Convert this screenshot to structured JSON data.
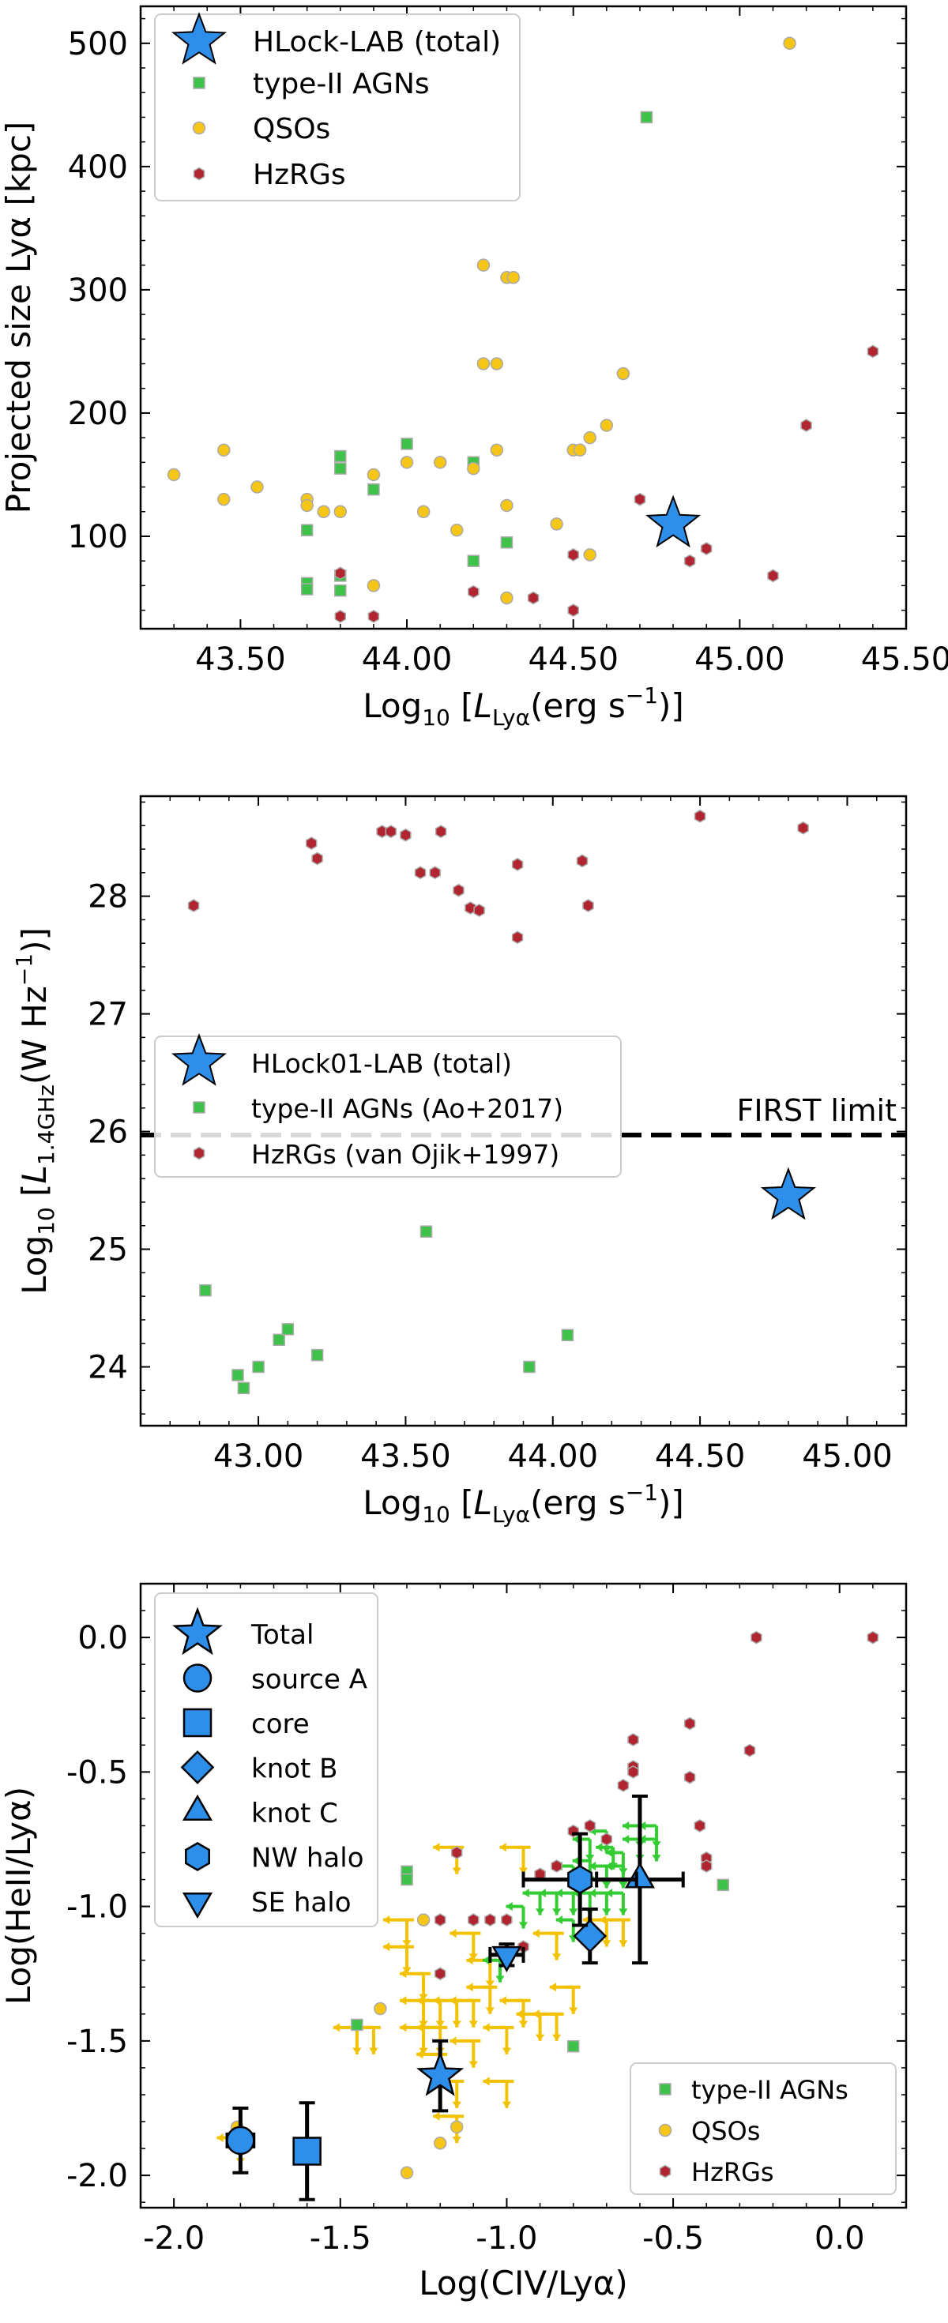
{
  "colors": {
    "star": "#2e8fea",
    "agn": "#3fc24a",
    "qso": "#f5c518",
    "hzrg": "#b02530",
    "limit_upper": "#f2c200",
    "limit_green": "#33cc33",
    "errorbar": "#000000",
    "marker_edge_grey": "#aaaaaa"
  },
  "chart_data": [
    {
      "id": "panel1",
      "type": "scatter",
      "xlabel_main": "Log",
      "xlabel_sub": "10",
      "xlabel_open": "[",
      "xlabel_var": "L",
      "xlabel_var_sub": "Lyα",
      "xlabel_unit": "(erg s",
      "xlabel_exp": "−1",
      "xlabel_close": ")]",
      "ylabel": "Projected size Lyα [kpc]",
      "xlim": [
        43.2,
        45.5
      ],
      "ylim": [
        25,
        530
      ],
      "xticks": [
        43.5,
        44.0,
        44.5,
        45.0,
        45.5
      ],
      "xtick_labels": [
        "43.50",
        "44.00",
        "44.50",
        "45.00",
        "45.50"
      ],
      "yticks": [
        100,
        200,
        300,
        400,
        500
      ],
      "ytick_labels": [
        "100",
        "200",
        "300",
        "400",
        "500"
      ],
      "legend": [
        {
          "label": "HLock-LAB (total)",
          "marker": "star",
          "series": "star"
        },
        {
          "label": "type-II AGNs",
          "marker": "square",
          "series": "agn"
        },
        {
          "label": "QSOs",
          "marker": "circle",
          "series": "qso"
        },
        {
          "label": "HzRGs",
          "marker": "hexagon",
          "series": "hzrg"
        }
      ],
      "series": {
        "star": [
          [
            44.8,
            110
          ]
        ],
        "agn": [
          [
            43.7,
            105
          ],
          [
            43.7,
            62
          ],
          [
            43.7,
            57
          ],
          [
            43.8,
            165
          ],
          [
            43.8,
            155
          ],
          [
            43.8,
            68
          ],
          [
            43.8,
            56
          ],
          [
            43.9,
            138
          ],
          [
            44.0,
            175
          ],
          [
            44.2,
            160
          ],
          [
            44.2,
            80
          ],
          [
            44.3,
            95
          ],
          [
            44.72,
            440
          ]
        ],
        "qso": [
          [
            43.3,
            150
          ],
          [
            43.45,
            130
          ],
          [
            43.45,
            170
          ],
          [
            43.55,
            140
          ],
          [
            43.7,
            130
          ],
          [
            43.7,
            125
          ],
          [
            43.75,
            120
          ],
          [
            43.8,
            120
          ],
          [
            43.9,
            150
          ],
          [
            43.9,
            60
          ],
          [
            44.0,
            160
          ],
          [
            44.05,
            120
          ],
          [
            44.1,
            160
          ],
          [
            44.15,
            105
          ],
          [
            44.2,
            155
          ],
          [
            44.23,
            320
          ],
          [
            44.23,
            240
          ],
          [
            44.27,
            170
          ],
          [
            44.27,
            240
          ],
          [
            44.3,
            310
          ],
          [
            44.32,
            310
          ],
          [
            44.3,
            125
          ],
          [
            44.3,
            50
          ],
          [
            44.45,
            110
          ],
          [
            44.5,
            170
          ],
          [
            44.52,
            170
          ],
          [
            44.55,
            180
          ],
          [
            44.55,
            85
          ],
          [
            44.6,
            190
          ],
          [
            44.65,
            232
          ],
          [
            45.15,
            500
          ]
        ],
        "hzrg": [
          [
            43.8,
            70
          ],
          [
            43.8,
            35
          ],
          [
            43.9,
            35
          ],
          [
            44.2,
            55
          ],
          [
            44.38,
            50
          ],
          [
            44.5,
            85
          ],
          [
            44.5,
            40
          ],
          [
            44.7,
            130
          ],
          [
            44.85,
            80
          ],
          [
            44.9,
            90
          ],
          [
            45.1,
            68
          ],
          [
            45.2,
            190
          ],
          [
            45.4,
            250
          ]
        ]
      }
    },
    {
      "id": "panel2",
      "type": "scatter",
      "xlabel_main": "Log",
      "xlabel_sub": "10",
      "xlabel_open": "[",
      "xlabel_var": "L",
      "xlabel_var_sub": "Lyα",
      "xlabel_unit": "(erg s",
      "xlabel_exp": "−1",
      "xlabel_close": ")]",
      "ylabel_main": "Log",
      "ylabel_sub": "10",
      "ylabel_open": "[",
      "ylabel_var": "L",
      "ylabel_var_sub": "1.4GHz",
      "ylabel_unit": "(W Hz",
      "ylabel_exp": "−1",
      "ylabel_close": ")]",
      "xlim": [
        42.6,
        45.2
      ],
      "ylim": [
        23.5,
        28.85
      ],
      "xticks": [
        43.0,
        43.5,
        44.0,
        44.5,
        45.0
      ],
      "xtick_labels": [
        "43.00",
        "43.50",
        "44.00",
        "44.50",
        "45.00"
      ],
      "yticks": [
        24,
        25,
        26,
        27,
        28
      ],
      "ytick_labels": [
        "24",
        "25",
        "26",
        "27",
        "28"
      ],
      "limit_line": {
        "y": 25.97,
        "label": "FIRST limit"
      },
      "legend": [
        {
          "label": "HLock01-LAB (total)",
          "marker": "star",
          "series": "star"
        },
        {
          "label": "type-II AGNs (Ao+2017)",
          "marker": "square",
          "series": "agn"
        },
        {
          "label": "HzRGs (van Ojik+1997)",
          "marker": "hexagon",
          "series": "hzrg"
        }
      ],
      "series": {
        "star": [
          [
            44.8,
            25.45
          ]
        ],
        "agn": [
          [
            42.82,
            24.65
          ],
          [
            42.93,
            23.93
          ],
          [
            42.95,
            23.82
          ],
          [
            43.0,
            24.0
          ],
          [
            43.07,
            24.23
          ],
          [
            43.1,
            24.32
          ],
          [
            43.2,
            24.1
          ],
          [
            43.57,
            25.15
          ],
          [
            43.92,
            24.0
          ],
          [
            44.05,
            24.27
          ]
        ],
        "hzrg": [
          [
            42.78,
            27.92
          ],
          [
            43.18,
            28.45
          ],
          [
            43.2,
            28.32
          ],
          [
            43.42,
            28.55
          ],
          [
            43.45,
            28.55
          ],
          [
            43.5,
            28.52
          ],
          [
            43.55,
            28.2
          ],
          [
            43.6,
            28.2
          ],
          [
            43.62,
            28.55
          ],
          [
            43.68,
            28.05
          ],
          [
            43.72,
            27.9
          ],
          [
            43.75,
            27.88
          ],
          [
            43.88,
            28.27
          ],
          [
            43.88,
            27.65
          ],
          [
            44.1,
            28.3
          ],
          [
            44.12,
            27.92
          ],
          [
            44.5,
            28.68
          ],
          [
            44.85,
            28.58
          ]
        ]
      }
    },
    {
      "id": "panel3",
      "type": "scatter",
      "xlabel": "Log(CIV/Lyα)",
      "ylabel": "Log(HeII/Lyα)",
      "xlim": [
        -2.1,
        0.2
      ],
      "ylim": [
        -2.12,
        0.2
      ],
      "xticks": [
        -2.0,
        -1.5,
        -1.0,
        -0.5,
        0.0
      ],
      "xtick_labels": [
        "-2.0",
        "-1.5",
        "-1.0",
        "-0.5",
        "0.0"
      ],
      "yticks": [
        -2.0,
        -1.5,
        -1.0,
        -0.5,
        0.0
      ],
      "ytick_labels": [
        "-2.0",
        "-1.5",
        "-1.0",
        "-0.5",
        "0.0"
      ],
      "legend_left": [
        {
          "label": "Total",
          "marker": "star"
        },
        {
          "label": "source A",
          "marker": "circle"
        },
        {
          "label": "core",
          "marker": "square"
        },
        {
          "label": "knot B",
          "marker": "diamond"
        },
        {
          "label": "knot C",
          "marker": "triangle-up"
        },
        {
          "label": "NW halo",
          "marker": "hexagon"
        },
        {
          "label": "SE halo",
          "marker": "triangle-down"
        }
      ],
      "legend_right": [
        {
          "label": "type-II AGNs",
          "marker": "square",
          "series": "agn"
        },
        {
          "label": "QSOs",
          "marker": "circle",
          "series": "qso"
        },
        {
          "label": "HzRGs",
          "marker": "hexagon",
          "series": "hzrg"
        }
      ],
      "measurements": [
        {
          "name": "Total",
          "marker": "star",
          "x": -1.2,
          "y": -1.63,
          "xerr": 0.0,
          "yerr": 0.13
        },
        {
          "name": "source A",
          "marker": "circle",
          "x": -1.8,
          "y": -1.87,
          "xerr": 0.04,
          "yerr": 0.12
        },
        {
          "name": "core",
          "marker": "square",
          "x": -1.6,
          "y": -1.91,
          "xerr": 0.0,
          "yerr": 0.18
        },
        {
          "name": "knot B",
          "marker": "diamond",
          "x": -0.75,
          "y": -1.11,
          "xerr": 0.0,
          "yerr": 0.1
        },
        {
          "name": "knot C",
          "marker": "triangle-up",
          "x": -0.6,
          "y": -0.9,
          "xerr": 0.13,
          "yerr": 0.31
        },
        {
          "name": "NW halo",
          "marker": "hexagon",
          "x": -0.78,
          "y": -0.9,
          "xerr": 0.17,
          "yerr": 0.17
        },
        {
          "name": "SE halo",
          "marker": "triangle-down",
          "x": -1.0,
          "y": -1.18,
          "xerr": 0.05,
          "yerr": 0.04
        }
      ],
      "series": {
        "agn": [
          [
            -1.45,
            -1.44
          ],
          [
            -1.3,
            -0.87
          ],
          [
            -1.3,
            -0.9
          ],
          [
            -0.8,
            -1.52
          ],
          [
            -0.35,
            -0.92
          ]
        ],
        "qso": [
          [
            -1.81,
            -1.82
          ],
          [
            -1.38,
            -1.38
          ],
          [
            -1.3,
            -1.99
          ],
          [
            -1.25,
            -1.05
          ],
          [
            -1.2,
            -1.88
          ],
          [
            -1.15,
            -1.82
          ]
        ],
        "hzrg": [
          [
            -1.2,
            -1.05
          ],
          [
            -1.15,
            -0.8
          ],
          [
            -1.1,
            -1.05
          ],
          [
            -1.05,
            -1.05
          ],
          [
            -1.0,
            -1.05
          ],
          [
            -1.0,
            -1.2
          ],
          [
            -0.95,
            -1.15
          ],
          [
            -0.9,
            -0.88
          ],
          [
            -0.85,
            -0.85
          ],
          [
            -0.8,
            -0.72
          ],
          [
            -0.75,
            -0.7
          ],
          [
            -0.7,
            -0.75
          ],
          [
            -0.65,
            -0.55
          ],
          [
            -0.62,
            -0.38
          ],
          [
            -0.62,
            -0.48
          ],
          [
            -0.62,
            -0.5
          ],
          [
            -0.45,
            -0.32
          ],
          [
            -0.45,
            -0.52
          ],
          [
            -0.42,
            -0.7
          ],
          [
            -0.4,
            -0.82
          ],
          [
            -0.4,
            -0.85
          ],
          [
            -0.27,
            -0.42
          ],
          [
            -0.25,
            0.0
          ],
          [
            0.1,
            0.0
          ],
          [
            -1.2,
            -1.25
          ]
        ],
        "upper_limits_yellow": [
          [
            -1.8,
            -1.86
          ],
          [
            -1.45,
            -1.45
          ],
          [
            -1.4,
            -1.45
          ],
          [
            -1.3,
            -1.05
          ],
          [
            -1.25,
            -1.25
          ],
          [
            -1.25,
            -1.35
          ],
          [
            -1.2,
            -1.35
          ],
          [
            -1.15,
            -1.35
          ],
          [
            -1.1,
            -1.35
          ],
          [
            -1.25,
            -1.45
          ],
          [
            -1.2,
            -1.45
          ],
          [
            -1.1,
            -1.1
          ],
          [
            -1.05,
            -1.2
          ],
          [
            -1.05,
            -1.3
          ],
          [
            -0.95,
            -1.35
          ],
          [
            -1.15,
            -1.78
          ],
          [
            -1.15,
            -1.65
          ],
          [
            -1.1,
            -1.5
          ],
          [
            -1.0,
            -1.45
          ],
          [
            -0.9,
            -1.4
          ],
          [
            -0.85,
            -1.4
          ],
          [
            -0.8,
            -1.3
          ],
          [
            -0.7,
            -1.05
          ],
          [
            -0.65,
            -1.05
          ],
          [
            -1.2,
            -1.55
          ],
          [
            -1.0,
            -1.65
          ],
          [
            -1.3,
            -1.15
          ],
          [
            -1.15,
            -0.78
          ],
          [
            -0.95,
            -0.78
          ],
          [
            -0.85,
            -1.1
          ]
        ],
        "upper_limits_green": [
          [
            -0.75,
            -0.75
          ],
          [
            -0.7,
            -0.72
          ],
          [
            -0.68,
            -0.78
          ],
          [
            -0.65,
            -0.8
          ],
          [
            -0.6,
            -0.7
          ],
          [
            -0.55,
            -0.7
          ],
          [
            -0.6,
            -0.75
          ],
          [
            -0.55,
            -0.75
          ],
          [
            -0.8,
            -0.85
          ],
          [
            -0.75,
            -0.83
          ],
          [
            -0.7,
            -0.85
          ],
          [
            -0.65,
            -0.85
          ],
          [
            -0.8,
            -0.95
          ],
          [
            -0.85,
            -0.95
          ],
          [
            -0.9,
            -0.95
          ],
          [
            -0.95,
            -1.0
          ],
          [
            -0.75,
            -0.95
          ],
          [
            -0.65,
            -0.95
          ],
          [
            -0.7,
            -0.95
          ],
          [
            -1.02,
            -1.2
          ],
          [
            -0.8,
            -1.05
          ]
        ]
      }
    }
  ]
}
